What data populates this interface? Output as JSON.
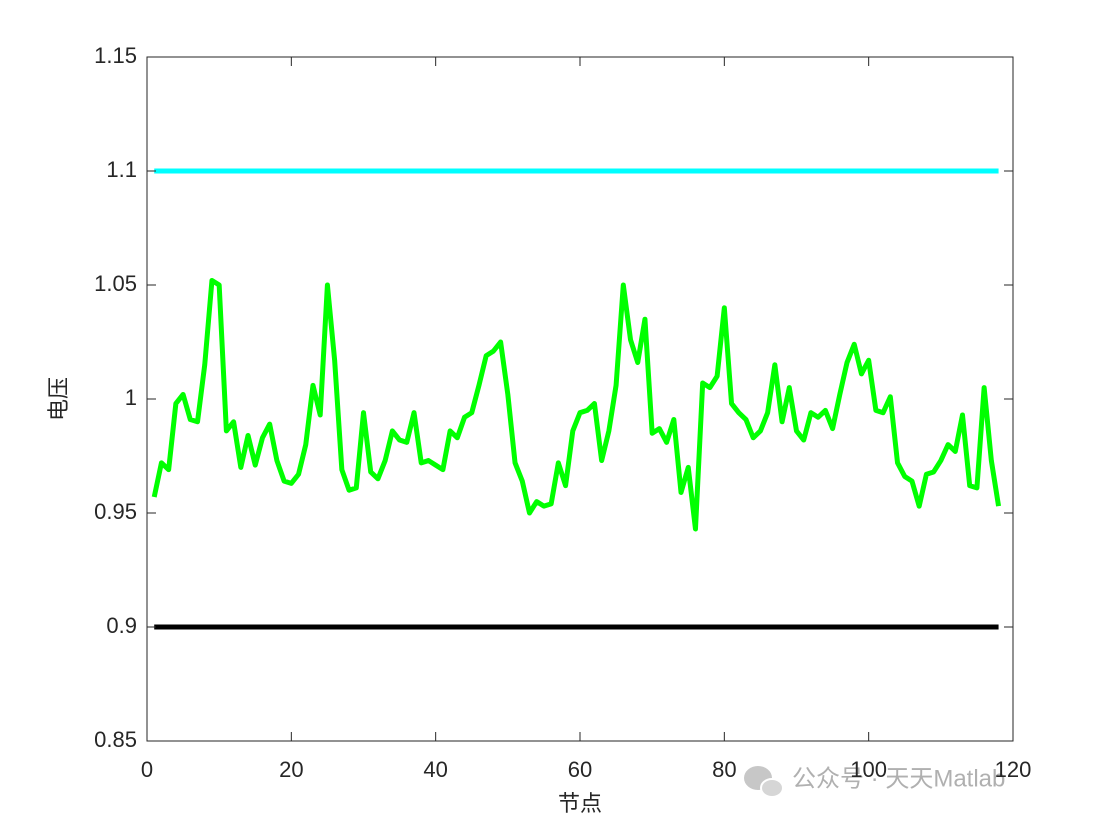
{
  "chart_data": {
    "type": "line",
    "xlabel": "节点",
    "ylabel": "电压",
    "xlim": [
      0,
      120
    ],
    "ylim": [
      0.85,
      1.15
    ],
    "xticks": [
      0,
      20,
      40,
      60,
      80,
      100,
      120
    ],
    "yticks": [
      0.85,
      0.9,
      0.95,
      1,
      1.05,
      1.1,
      1.15
    ],
    "grid": false,
    "series": [
      {
        "name": "upper",
        "color": "#00ffff",
        "x": [
          1,
          118
        ],
        "values": [
          1.1,
          1.1
        ]
      },
      {
        "name": "lower",
        "color": "#000000",
        "x": [
          1,
          118
        ],
        "values": [
          0.9,
          0.9
        ]
      },
      {
        "name": "voltage",
        "color": "#00ff00",
        "x": [
          1,
          2,
          3,
          4,
          5,
          6,
          7,
          8,
          9,
          10,
          11,
          12,
          13,
          14,
          15,
          16,
          17,
          18,
          19,
          20,
          21,
          22,
          23,
          24,
          25,
          26,
          27,
          28,
          29,
          30,
          31,
          32,
          33,
          34,
          35,
          36,
          37,
          38,
          39,
          40,
          41,
          42,
          43,
          44,
          45,
          46,
          47,
          48,
          49,
          50,
          51,
          52,
          53,
          54,
          55,
          56,
          57,
          58,
          59,
          60,
          61,
          62,
          63,
          64,
          65,
          66,
          67,
          68,
          69,
          70,
          71,
          72,
          73,
          74,
          75,
          76,
          77,
          78,
          79,
          80,
          81,
          82,
          83,
          84,
          85,
          86,
          87,
          88,
          89,
          90,
          91,
          92,
          93,
          94,
          95,
          96,
          97,
          98,
          99,
          100,
          101,
          102,
          103,
          104,
          105,
          106,
          107,
          108,
          109,
          110,
          111,
          112,
          113,
          114,
          115,
          116,
          117,
          118
        ],
        "values": [
          0.957,
          0.972,
          0.969,
          0.998,
          1.002,
          0.991,
          0.99,
          1.015,
          1.052,
          1.05,
          0.986,
          0.99,
          0.97,
          0.984,
          0.971,
          0.983,
          0.989,
          0.973,
          0.964,
          0.963,
          0.967,
          0.98,
          1.006,
          0.993,
          1.05,
          1.017,
          0.969,
          0.96,
          0.961,
          0.994,
          0.968,
          0.965,
          0.973,
          0.986,
          0.982,
          0.981,
          0.994,
          0.972,
          0.973,
          0.971,
          0.969,
          0.986,
          0.983,
          0.992,
          0.994,
          1.006,
          1.019,
          1.021,
          1.025,
          1.002,
          0.972,
          0.964,
          0.95,
          0.955,
          0.953,
          0.954,
          0.972,
          0.962,
          0.986,
          0.994,
          0.995,
          0.998,
          0.973,
          0.986,
          1.006,
          1.05,
          1.026,
          1.016,
          1.035,
          0.985,
          0.987,
          0.981,
          0.991,
          0.959,
          0.97,
          0.943,
          1.007,
          1.005,
          1.01,
          1.04,
          0.998,
          0.994,
          0.991,
          0.983,
          0.986,
          0.994,
          1.015,
          0.99,
          1.005,
          0.986,
          0.982,
          0.994,
          0.992,
          0.995,
          0.987,
          1.002,
          1.016,
          1.024,
          1.011,
          1.017,
          0.995,
          0.994,
          1.001,
          0.972,
          0.966,
          0.964,
          0.953,
          0.967,
          0.968,
          0.973,
          0.98,
          0.977,
          0.993,
          0.962,
          0.961,
          1.005,
          0.973,
          0.953
        ]
      }
    ]
  },
  "watermark": "公众号 · 天天Matlab"
}
